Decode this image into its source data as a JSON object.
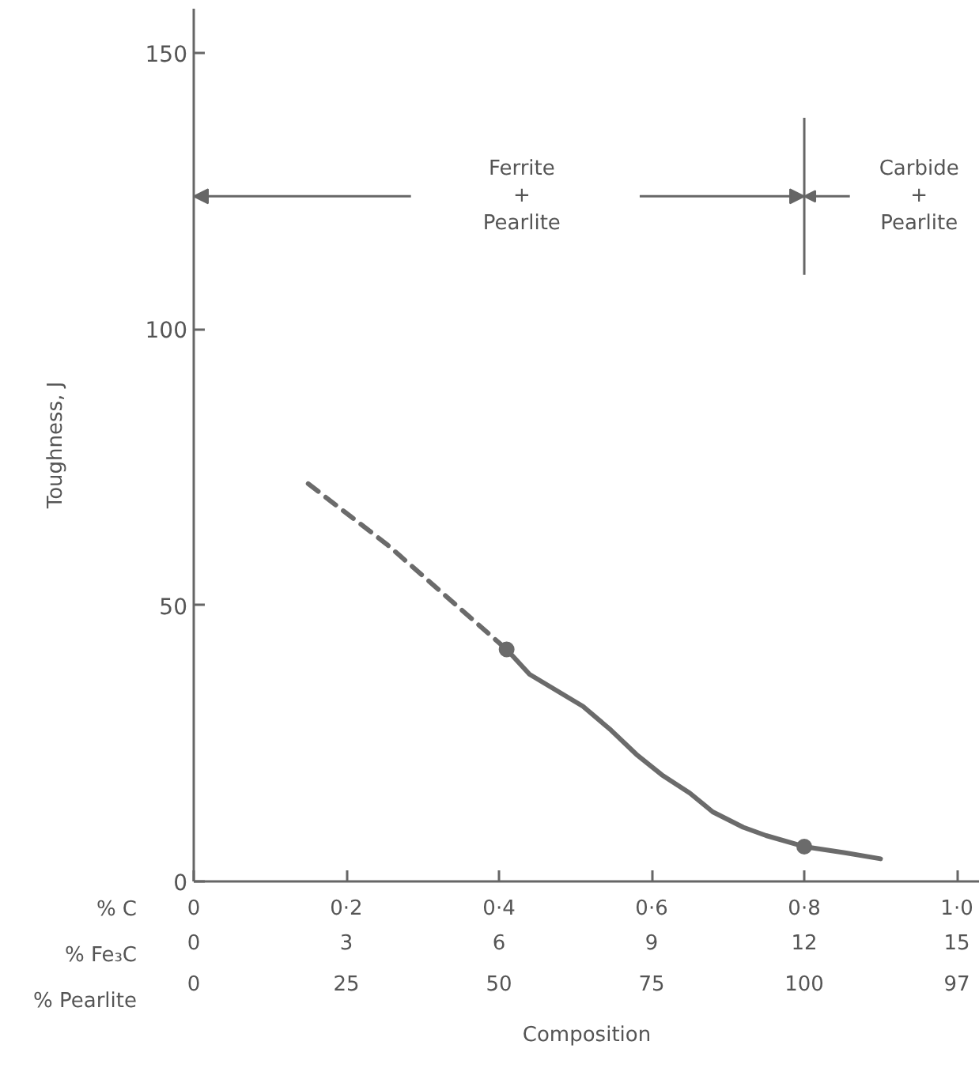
{
  "chart_data": {
    "type": "line",
    "xlabel": "Composition",
    "ylabel": "Toughness, J",
    "xlim": [
      0,
      15.45
    ],
    "xticks": [
      0,
      3,
      6,
      9,
      12,
      15
    ],
    "ylim": [
      0,
      158
    ],
    "yticks": [
      0,
      50,
      100,
      150
    ],
    "series": [
      {
        "line_style": "dashed",
        "color": "#6b6b6b",
        "x": [
          2.25,
          3.8,
          6.15
        ],
        "values": [
          72,
          61,
          42
        ]
      },
      {
        "line_style": "solid",
        "color": "#6b6b6b",
        "x": [
          6.15,
          6.6,
          7.65,
          8.2,
          8.7,
          9.2,
          9.75,
          10.2,
          10.8,
          11.25,
          12,
          12.8,
          13.5
        ],
        "values": [
          42,
          37.5,
          31.7,
          27.4,
          23,
          19.3,
          16,
          12.6,
          9.8,
          8.3,
          6.3,
          5.2,
          4.1
        ]
      },
      {
        "type": "scatter",
        "marker": "circle",
        "color": "#6b6b6b",
        "x": [
          6.15,
          12
        ],
        "values": [
          42,
          6.3
        ]
      }
    ],
    "ref_lines": [
      {
        "axis": "x",
        "value": 12
      }
    ],
    "annotations": [
      "Ferrite\n+\nPearlite",
      "Carbide\n+\nPearlite",
      "% C",
      "% Fe₃C",
      "% Pearlite",
      "0",
      "0·2",
      "0·4",
      "0·6",
      "0·8",
      "1·0",
      "0",
      "25",
      "50",
      "75",
      "100",
      "97"
    ]
  }
}
